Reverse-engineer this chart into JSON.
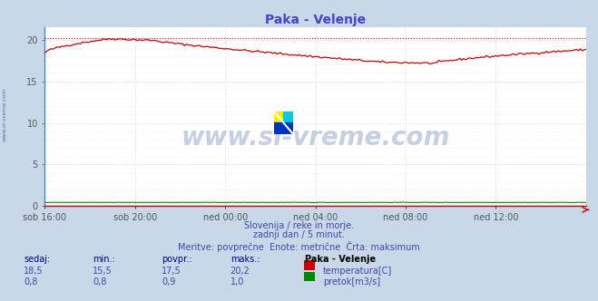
{
  "title": "Paka - Velenje",
  "title_color": "#4444cc",
  "background_color": "#c8d8e8",
  "plot_bg_color": "#ffffff",
  "grid_color_h": "#ddddee",
  "grid_color_v": "#ffcccc",
  "xlabel_ticks": [
    "sob 16:00",
    "sob 20:00",
    "ned 00:00",
    "ned 04:00",
    "ned 08:00",
    "ned 12:00"
  ],
  "x_tick_positions": [
    0.0,
    0.1667,
    0.3333,
    0.5,
    0.6667,
    0.8333
  ],
  "ylabel_values": [
    0,
    5,
    10,
    15,
    20
  ],
  "ylim": [
    0,
    21.5
  ],
  "temp_max_line": 20.2,
  "temp_color": "#cc0000",
  "flow_color": "#008800",
  "flow_color2": "#0000cc",
  "watermark_text": "www.si-vreme.com",
  "watermark_color": "#224488",
  "watermark_alpha": 0.25,
  "sub_text1": "Slovenija / reke in morje.",
  "sub_text2": "zadnji dan / 5 minut.",
  "sub_text3": "Meritve: povprečne  Enote: metrične  Črta: maksimum",
  "sub_text_color": "#4444aa",
  "table_header": [
    "sedaj:",
    "min.:",
    "povpr.:",
    "maks.:",
    "Paka - Velenje"
  ],
  "table_row1": [
    "18,5",
    "15,5",
    "17,5",
    "20,2"
  ],
  "table_row2": [
    "0,8",
    "0,8",
    "0,9",
    "1,0"
  ],
  "label_temp": "temperatura[C]",
  "label_flow": "pretok[m3/s]",
  "table_color": "#4444aa",
  "table_header_color": "#000088",
  "n_points": 288,
  "left_spine_color": "#4488cc",
  "bottom_spine_color": "#cc0000"
}
